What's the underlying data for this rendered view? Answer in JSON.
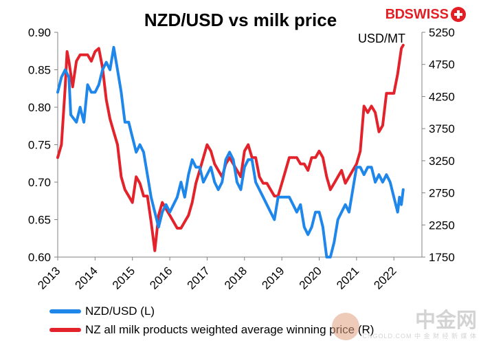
{
  "logo": {
    "text_bd": "BD",
    "text_swiss": "SWISS"
  },
  "watermark": {
    "main": "中金网",
    "sub": "CNGOLD.COM  中 金 财 经 新 媒 体"
  },
  "colors": {
    "nzdusd": "#1f86ea",
    "milk": "#e3232b",
    "axis": "#808080"
  },
  "chart_data": {
    "type": "line",
    "title": "NZD/USD vs milk price",
    "right_axis_label": "USD/MT",
    "x_ticks": [
      "2013",
      "2014",
      "2015",
      "2016",
      "2017",
      "2018",
      "2019",
      "2020",
      "2021",
      "2022"
    ],
    "y_left": {
      "ticks": [
        "0.60",
        "0.65",
        "0.70",
        "0.75",
        "0.80",
        "0.85",
        "0.90"
      ],
      "range": [
        0.6,
        0.9
      ]
    },
    "y_right": {
      "ticks": [
        "1750",
        "2250",
        "2750",
        "3250",
        "3750",
        "4250",
        "4750",
        "5250"
      ],
      "range": [
        1750,
        5250
      ]
    },
    "legend_placement": "bottom",
    "series": [
      {
        "name": "NZD/USD (L)",
        "axis": "left",
        "points": [
          [
            2013.0,
            0.82
          ],
          [
            2013.1,
            0.84
          ],
          [
            2013.2,
            0.85
          ],
          [
            2013.3,
            0.84
          ],
          [
            2013.35,
            0.79
          ],
          [
            2013.5,
            0.78
          ],
          [
            2013.6,
            0.8
          ],
          [
            2013.7,
            0.78
          ],
          [
            2013.8,
            0.83
          ],
          [
            2013.9,
            0.82
          ],
          [
            2014.0,
            0.82
          ],
          [
            2014.1,
            0.83
          ],
          [
            2014.2,
            0.85
          ],
          [
            2014.3,
            0.86
          ],
          [
            2014.4,
            0.85
          ],
          [
            2014.5,
            0.88
          ],
          [
            2014.6,
            0.85
          ],
          [
            2014.7,
            0.82
          ],
          [
            2014.8,
            0.78
          ],
          [
            2014.9,
            0.78
          ],
          [
            2015.0,
            0.76
          ],
          [
            2015.1,
            0.74
          ],
          [
            2015.2,
            0.75
          ],
          [
            2015.3,
            0.74
          ],
          [
            2015.4,
            0.71
          ],
          [
            2015.5,
            0.68
          ],
          [
            2015.6,
            0.66
          ],
          [
            2015.7,
            0.64
          ],
          [
            2015.8,
            0.66
          ],
          [
            2015.9,
            0.67
          ],
          [
            2016.0,
            0.66
          ],
          [
            2016.1,
            0.67
          ],
          [
            2016.2,
            0.68
          ],
          [
            2016.3,
            0.7
          ],
          [
            2016.4,
            0.68
          ],
          [
            2016.5,
            0.71
          ],
          [
            2016.6,
            0.73
          ],
          [
            2016.7,
            0.72
          ],
          [
            2016.8,
            0.72
          ],
          [
            2016.9,
            0.7
          ],
          [
            2017.0,
            0.71
          ],
          [
            2017.1,
            0.72
          ],
          [
            2017.2,
            0.7
          ],
          [
            2017.3,
            0.69
          ],
          [
            2017.4,
            0.7
          ],
          [
            2017.5,
            0.73
          ],
          [
            2017.6,
            0.74
          ],
          [
            2017.7,
            0.73
          ],
          [
            2017.8,
            0.7
          ],
          [
            2017.9,
            0.69
          ],
          [
            2018.0,
            0.72
          ],
          [
            2018.1,
            0.73
          ],
          [
            2018.2,
            0.73
          ],
          [
            2018.3,
            0.7
          ],
          [
            2018.4,
            0.69
          ],
          [
            2018.5,
            0.68
          ],
          [
            2018.6,
            0.67
          ],
          [
            2018.7,
            0.66
          ],
          [
            2018.8,
            0.65
          ],
          [
            2018.9,
            0.68
          ],
          [
            2019.0,
            0.68
          ],
          [
            2019.1,
            0.68
          ],
          [
            2019.2,
            0.68
          ],
          [
            2019.3,
            0.67
          ],
          [
            2019.4,
            0.66
          ],
          [
            2019.5,
            0.67
          ],
          [
            2019.6,
            0.64
          ],
          [
            2019.7,
            0.63
          ],
          [
            2019.8,
            0.64
          ],
          [
            2019.9,
            0.66
          ],
          [
            2020.0,
            0.66
          ],
          [
            2020.1,
            0.64
          ],
          [
            2020.2,
            0.6
          ],
          [
            2020.3,
            0.6
          ],
          [
            2020.4,
            0.62
          ],
          [
            2020.5,
            0.65
          ],
          [
            2020.6,
            0.66
          ],
          [
            2020.7,
            0.67
          ],
          [
            2020.8,
            0.66
          ],
          [
            2020.9,
            0.69
          ],
          [
            2021.0,
            0.72
          ],
          [
            2021.1,
            0.72
          ],
          [
            2021.2,
            0.71
          ],
          [
            2021.3,
            0.72
          ],
          [
            2021.4,
            0.72
          ],
          [
            2021.5,
            0.7
          ],
          [
            2021.6,
            0.71
          ],
          [
            2021.7,
            0.7
          ],
          [
            2021.8,
            0.71
          ],
          [
            2021.9,
            0.7
          ],
          [
            2022.0,
            0.68
          ],
          [
            2022.1,
            0.66
          ],
          [
            2022.15,
            0.68
          ],
          [
            2022.2,
            0.67
          ],
          [
            2022.25,
            0.69
          ]
        ]
      },
      {
        "name": "NZ all milk products weighted average winning price (R)",
        "axis": "right",
        "points": [
          [
            2013.0,
            3300
          ],
          [
            2013.1,
            3500
          ],
          [
            2013.2,
            4400
          ],
          [
            2013.25,
            4950
          ],
          [
            2013.3,
            4800
          ],
          [
            2013.4,
            4400
          ],
          [
            2013.5,
            4800
          ],
          [
            2013.6,
            4900
          ],
          [
            2013.7,
            4900
          ],
          [
            2013.8,
            4900
          ],
          [
            2013.9,
            4800
          ],
          [
            2014.0,
            4950
          ],
          [
            2014.1,
            5000
          ],
          [
            2014.2,
            4700
          ],
          [
            2014.3,
            4200
          ],
          [
            2014.4,
            3900
          ],
          [
            2014.5,
            3700
          ],
          [
            2014.6,
            3500
          ],
          [
            2014.7,
            3000
          ],
          [
            2014.8,
            2800
          ],
          [
            2014.9,
            2700
          ],
          [
            2015.0,
            2600
          ],
          [
            2015.1,
            3000
          ],
          [
            2015.2,
            2900
          ],
          [
            2015.3,
            2700
          ],
          [
            2015.4,
            2700
          ],
          [
            2015.5,
            2300
          ],
          [
            2015.6,
            1850
          ],
          [
            2015.7,
            2400
          ],
          [
            2015.8,
            2600
          ],
          [
            2015.9,
            2500
          ],
          [
            2016.0,
            2400
          ],
          [
            2016.1,
            2300
          ],
          [
            2016.2,
            2200
          ],
          [
            2016.3,
            2200
          ],
          [
            2016.4,
            2300
          ],
          [
            2016.5,
            2400
          ],
          [
            2016.6,
            2600
          ],
          [
            2016.7,
            2900
          ],
          [
            2016.8,
            3100
          ],
          [
            2016.9,
            3300
          ],
          [
            2017.0,
            3500
          ],
          [
            2017.1,
            3400
          ],
          [
            2017.2,
            3200
          ],
          [
            2017.3,
            3100
          ],
          [
            2017.4,
            3000
          ],
          [
            2017.5,
            3200
          ],
          [
            2017.6,
            3300
          ],
          [
            2017.7,
            3200
          ],
          [
            2017.8,
            3100
          ],
          [
            2017.9,
            3000
          ],
          [
            2018.0,
            3400
          ],
          [
            2018.1,
            3500
          ],
          [
            2018.2,
            3300
          ],
          [
            2018.3,
            3300
          ],
          [
            2018.4,
            3000
          ],
          [
            2018.5,
            2900
          ],
          [
            2018.6,
            2900
          ],
          [
            2018.7,
            2800
          ],
          [
            2018.8,
            2700
          ],
          [
            2018.9,
            2700
          ],
          [
            2019.0,
            2900
          ],
          [
            2019.1,
            3100
          ],
          [
            2019.2,
            3300
          ],
          [
            2019.3,
            3300
          ],
          [
            2019.4,
            3300
          ],
          [
            2019.5,
            3200
          ],
          [
            2019.6,
            3200
          ],
          [
            2019.7,
            3100
          ],
          [
            2019.8,
            3300
          ],
          [
            2019.9,
            3300
          ],
          [
            2020.0,
            3400
          ],
          [
            2020.1,
            3300
          ],
          [
            2020.2,
            3000
          ],
          [
            2020.3,
            2800
          ],
          [
            2020.4,
            2900
          ],
          [
            2020.5,
            3000
          ],
          [
            2020.6,
            3100
          ],
          [
            2020.7,
            2900
          ],
          [
            2020.8,
            3000
          ],
          [
            2020.9,
            3100
          ],
          [
            2021.0,
            3200
          ],
          [
            2021.1,
            3400
          ],
          [
            2021.2,
            4100
          ],
          [
            2021.3,
            4000
          ],
          [
            2021.4,
            4100
          ],
          [
            2021.5,
            4000
          ],
          [
            2021.6,
            3700
          ],
          [
            2021.7,
            3800
          ],
          [
            2021.8,
            4300
          ],
          [
            2021.9,
            4300
          ],
          [
            2022.0,
            4300
          ],
          [
            2022.1,
            4600
          ],
          [
            2022.15,
            4800
          ],
          [
            2022.2,
            5000
          ],
          [
            2022.25,
            5050
          ]
        ]
      }
    ]
  }
}
